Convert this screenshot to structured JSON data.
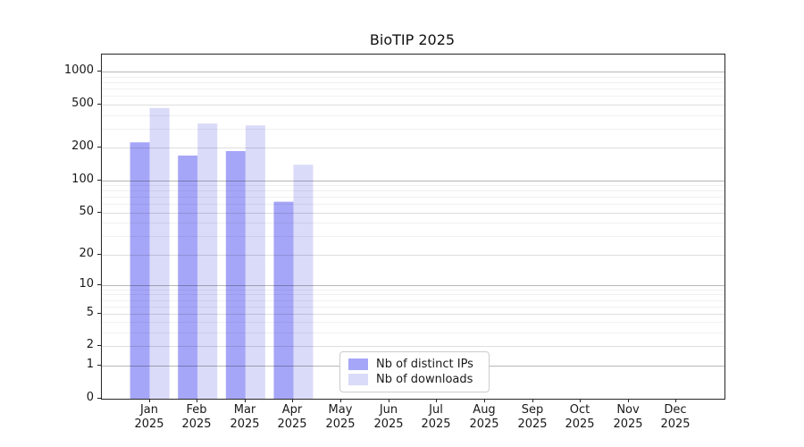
{
  "chart_data": {
    "type": "bar",
    "title": "BioTIP 2025",
    "months": [
      "Jan",
      "Feb",
      "Mar",
      "Apr",
      "May",
      "Jun",
      "Jul",
      "Aug",
      "Sep",
      "Oct",
      "Nov",
      "Dec"
    ],
    "year_label": "2025",
    "series": [
      {
        "name": "Nb of distinct IPs",
        "color": "#a6a6f8",
        "values": [
          224,
          169,
          186,
          63,
          null,
          null,
          null,
          null,
          null,
          null,
          null,
          null
        ]
      },
      {
        "name": "Nb of downloads",
        "color": "#dadaf9",
        "values": [
          464,
          334,
          321,
          139,
          null,
          null,
          null,
          null,
          null,
          null,
          null,
          null
        ]
      }
    ],
    "yscale": "log1p",
    "yticks": [
      0,
      1,
      2,
      5,
      10,
      20,
      50,
      100,
      200,
      500,
      1000
    ],
    "decade_gridlines": [
      1,
      10,
      100,
      1000
    ],
    "minor_gridlines": [
      3,
      4,
      6,
      7,
      8,
      9,
      30,
      40,
      60,
      70,
      80,
      90,
      300,
      400,
      600,
      700,
      800,
      900
    ],
    "ylim": [
      0,
      1430
    ],
    "xlabel": "",
    "ylabel": "",
    "grid": "horizontal",
    "legend_position": "lower-center-inside"
  }
}
